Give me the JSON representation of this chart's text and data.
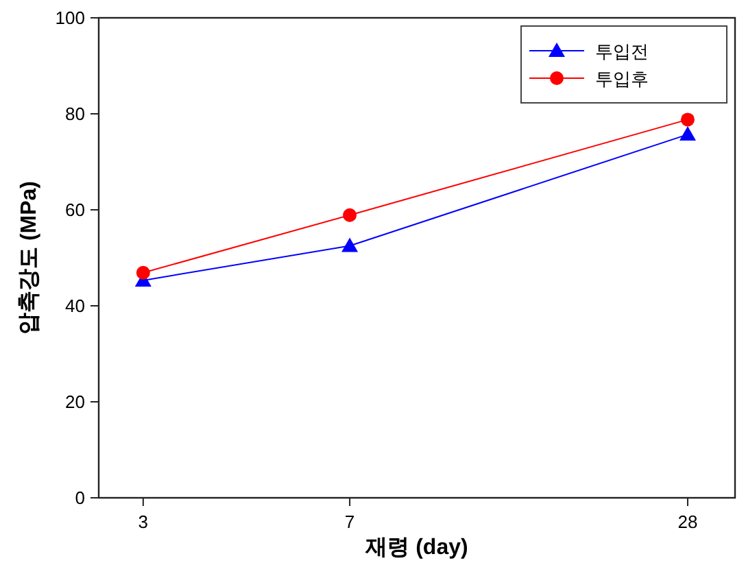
{
  "chart_data": {
    "type": "line",
    "xlabel": "재령 (day)",
    "ylabel": "압축강도 (MPa)",
    "x": [
      3,
      7,
      28
    ],
    "log": "x",
    "xlim": [
      2.5,
      34
    ],
    "xticks": [
      3,
      7,
      28
    ],
    "ylim": [
      0,
      100
    ],
    "yticks": [
      0,
      20,
      40,
      60,
      80,
      100
    ],
    "grid": false,
    "legend": "top right",
    "series": [
      {
        "name": "투입전",
        "color": "#0000ff",
        "marker": "triangle",
        "values": [
          45.3,
          52.5,
          75.7
        ]
      },
      {
        "name": "투입후",
        "color": "#ff0000",
        "marker": "circle",
        "values": [
          46.9,
          58.9,
          78.8
        ]
      }
    ]
  }
}
